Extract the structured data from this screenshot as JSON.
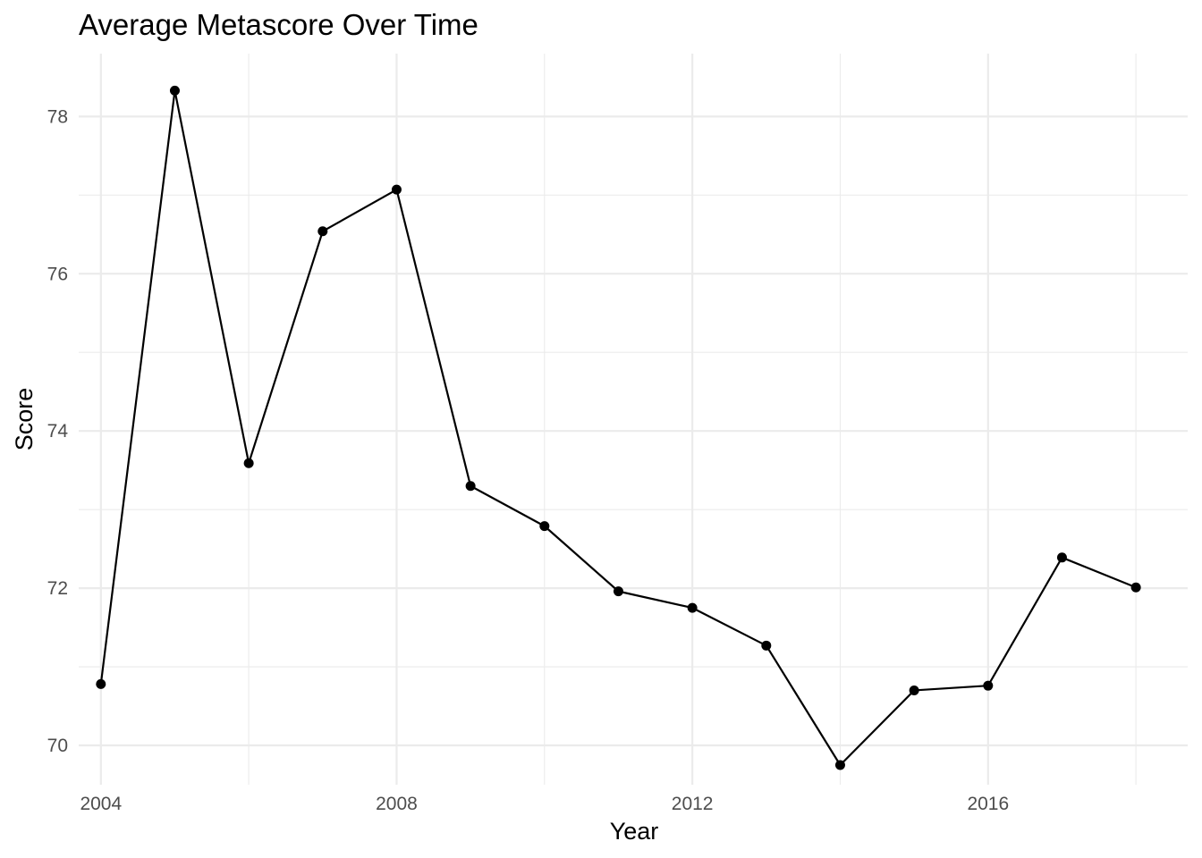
{
  "chart_data": {
    "type": "line",
    "title": "Average Metascore Over Time",
    "xlabel": "Year",
    "ylabel": "Score",
    "x": [
      2004,
      2005,
      2006,
      2007,
      2008,
      2009,
      2010,
      2011,
      2012,
      2013,
      2014,
      2015,
      2016,
      2017,
      2018
    ],
    "series": [
      {
        "values": [
          70.78,
          78.33,
          73.59,
          76.54,
          77.07,
          73.3,
          72.79,
          71.96,
          71.75,
          71.27,
          69.75,
          70.7,
          70.76,
          72.39,
          72.01
        ],
        "color": "#000000"
      }
    ],
    "xlim": [
      2003.7,
      2018.7
    ],
    "ylim": [
      69.5,
      78.8
    ],
    "x_ticks": [
      2004,
      2008,
      2012,
      2016
    ],
    "x_tick_labels": [
      "2004",
      "2008",
      "2012",
      "2016"
    ],
    "x_minor_ticks": [
      2006,
      2010,
      2014,
      2018
    ],
    "y_ticks": [
      70,
      72,
      74,
      76,
      78
    ],
    "y_tick_labels": [
      "70",
      "72",
      "74",
      "76",
      "78"
    ],
    "y_minor_ticks": [
      71,
      73,
      75,
      77
    ],
    "grid": true,
    "legend": "none"
  }
}
